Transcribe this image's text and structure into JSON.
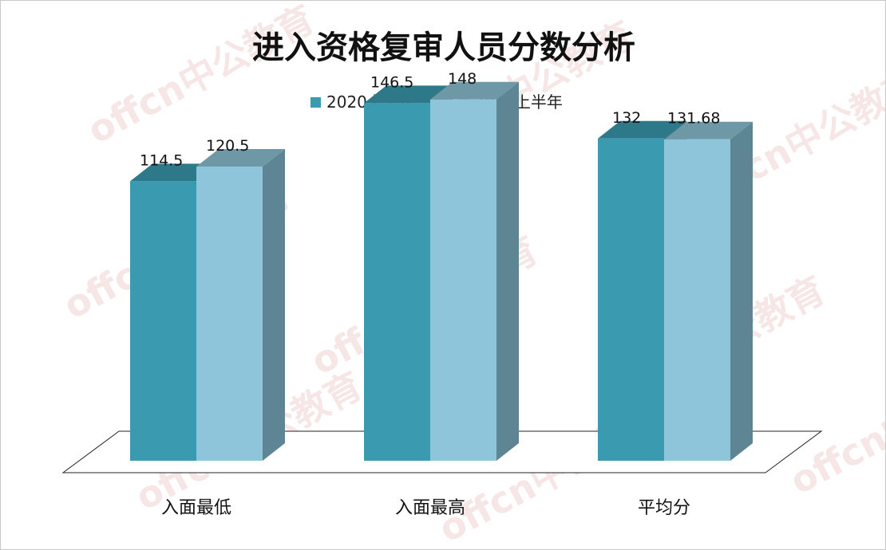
{
  "watermark": {
    "text": "offcn中公教育",
    "color": "#e6b8b8"
  },
  "chart_data": {
    "type": "bar",
    "title": "进入资格复审人员分数分析",
    "categories": [
      "入面最低",
      "入面最高",
      "平均分"
    ],
    "series": [
      {
        "name": "2020上半年",
        "values": [
          114.5,
          146.5,
          132
        ],
        "labels": [
          "114.5",
          "146.5",
          "132"
        ],
        "color": "#3a9bb0"
      },
      {
        "name": "2019上半年",
        "values": [
          120.5,
          148,
          131.68
        ],
        "labels": [
          "120.5",
          "148",
          "131.68"
        ],
        "color": "#8ec5da"
      }
    ],
    "legend_position": "top",
    "ylim": [
      0,
      160
    ],
    "grid": false
  }
}
